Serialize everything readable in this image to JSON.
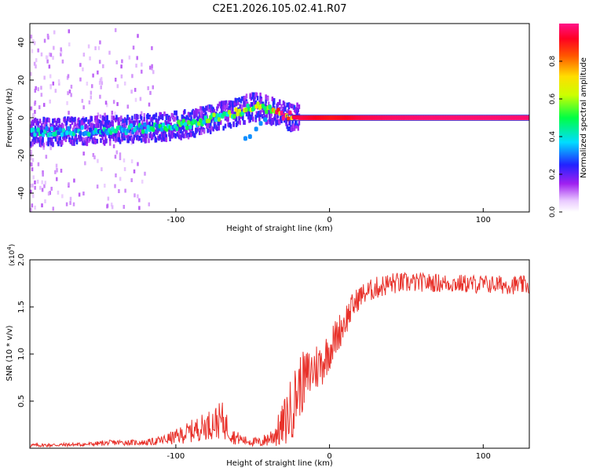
{
  "figure": {
    "title": "C2E1.2026.105.02.41.R07"
  },
  "chart_data": [
    {
      "type": "heatmap",
      "name": "spectrogram",
      "xlabel": "Height of straight line (km)",
      "ylabel": "Frequency (Hz)",
      "xlim": [
        -195,
        130
      ],
      "ylim": [
        -50,
        50
      ],
      "xticks": [
        -100,
        0,
        100
      ],
      "xtick_labels": [
        "-100",
        "0",
        "100"
      ],
      "yticks": [
        -40,
        -20,
        0,
        20,
        40
      ],
      "ytick_labels": [
        "-40",
        "-20",
        "0",
        "20",
        "40"
      ],
      "colorbar": {
        "label": "Normalized spectral amplitude",
        "range": [
          0,
          1
        ],
        "ticks": [
          0,
          0.2,
          0.4,
          0.6,
          0.8
        ],
        "tick_labels": [
          "0.0",
          "0.2",
          "0.4",
          "0.6",
          "0.8"
        ]
      },
      "ridge": {
        "x": [
          -195,
          -170,
          -150,
          -130,
          -110,
          -90,
          -75,
          -60,
          -50,
          -40,
          -30,
          -20,
          -10,
          0,
          10,
          20,
          40,
          60,
          80,
          100,
          130
        ],
        "frequency": [
          -8,
          -7,
          -7,
          -6,
          -5,
          -3,
          0,
          3,
          6,
          4,
          1,
          0,
          0,
          0,
          0,
          0,
          0,
          0,
          0,
          0,
          0
        ],
        "amplitude": [
          0.35,
          0.35,
          0.35,
          0.38,
          0.4,
          0.45,
          0.5,
          0.55,
          0.55,
          0.6,
          0.95,
          0.95,
          0.92,
          0.9,
          0.92,
          0.95,
          0.97,
          0.98,
          0.98,
          0.98,
          0.98
        ]
      },
      "side_branch": {
        "x": [
          -55,
          -52,
          -48,
          -45,
          -42
        ],
        "frequency": [
          -11,
          -10,
          -6,
          -3,
          -1
        ]
      }
    },
    {
      "type": "line",
      "name": "snr",
      "xlabel": "Height of straight line (km)",
      "ylabel": "SNR (10 * v/v)",
      "y_multiplier": "(x10",
      "y_multiplier_exp": "4",
      "y_multiplier_close": ")",
      "xlim": [
        -195,
        130
      ],
      "ylim": [
        0,
        2.0
      ],
      "xticks": [
        -100,
        0,
        100
      ],
      "xtick_labels": [
        "-100",
        "0",
        "100"
      ],
      "yticks": [
        0.5,
        1.0,
        1.5,
        2.0
      ],
      "ytick_labels": [
        "0.5",
        "1.0",
        "1.5",
        "2.0"
      ],
      "color": "#e8312a",
      "envelope": {
        "x": [
          -195,
          -160,
          -140,
          -120,
          -110,
          -100,
          -90,
          -80,
          -70,
          -62,
          -55,
          -45,
          -38,
          -32,
          -28,
          -24,
          -20,
          -15,
          -10,
          -5,
          0,
          5,
          10,
          15,
          20,
          30,
          40,
          60,
          80,
          100,
          130
        ],
        "mean": [
          0.03,
          0.04,
          0.06,
          0.06,
          0.08,
          0.12,
          0.18,
          0.24,
          0.3,
          0.12,
          0.08,
          0.06,
          0.12,
          0.2,
          0.32,
          0.45,
          0.65,
          0.75,
          0.85,
          0.9,
          1.05,
          1.2,
          1.35,
          1.5,
          1.62,
          1.7,
          1.75,
          1.76,
          1.75,
          1.74,
          1.73
        ],
        "noise": [
          0.02,
          0.02,
          0.03,
          0.03,
          0.05,
          0.08,
          0.12,
          0.15,
          0.2,
          0.08,
          0.05,
          0.05,
          0.1,
          0.2,
          0.3,
          0.35,
          0.35,
          0.3,
          0.28,
          0.25,
          0.22,
          0.2,
          0.18,
          0.15,
          0.12,
          0.12,
          0.12,
          0.1,
          0.1,
          0.1,
          0.1
        ]
      }
    }
  ]
}
